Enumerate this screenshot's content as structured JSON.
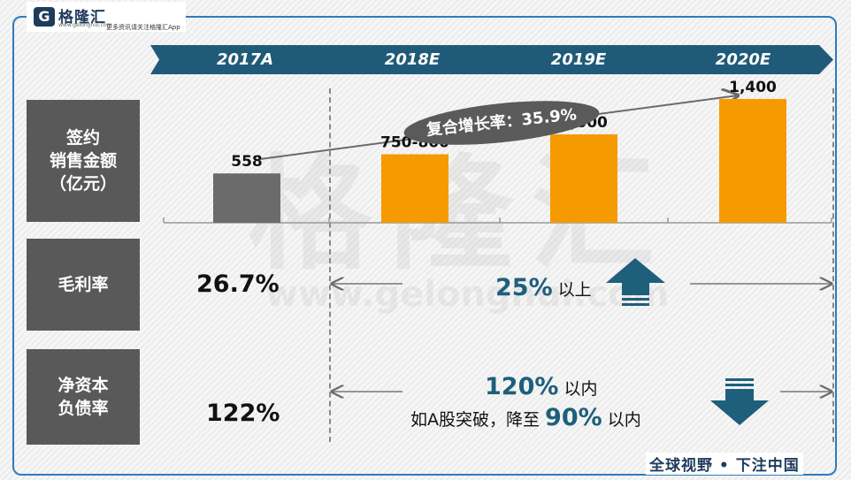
{
  "logo": {
    "mark": "G",
    "name": "格隆汇",
    "url": "www.gelonghui.com",
    "tagline": "更多资讯请关注格隆汇App"
  },
  "watermark": {
    "text": "格隆汇",
    "url": "www.gelonghui.com"
  },
  "header": {
    "years": [
      "2017A",
      "2018E",
      "2019E",
      "2020E"
    ]
  },
  "rows": {
    "sales": "签约\n销售金额\n（亿元）",
    "margin": "毛利率",
    "gearing": "净资本\n负债率"
  },
  "chart_data": {
    "type": "bar",
    "categories": [
      "2017A",
      "2018E",
      "2019E",
      "2020E"
    ],
    "values": [
      558,
      775,
      1000,
      1400
    ],
    "data_labels": [
      "558",
      "750-800",
      "1,000",
      "1,400"
    ],
    "colors": [
      "#6b6b6b",
      "#f59a00",
      "#f59a00",
      "#f59a00"
    ],
    "annotation": "复合增长率：35.9%",
    "ylim": [
      0,
      1600
    ]
  },
  "margin_row": {
    "value_2017": "26.7%",
    "target_pct": "25%",
    "target_text": " 以上"
  },
  "gearing_row": {
    "value_2017": "122%",
    "target_pct": "120%",
    "target_text": " 以内",
    "note_prefix": "如A股突破，降至 ",
    "note_pct": "90%",
    "note_suffix": " 以内"
  },
  "footer": {
    "text": "全球视野 • 下注中国"
  }
}
